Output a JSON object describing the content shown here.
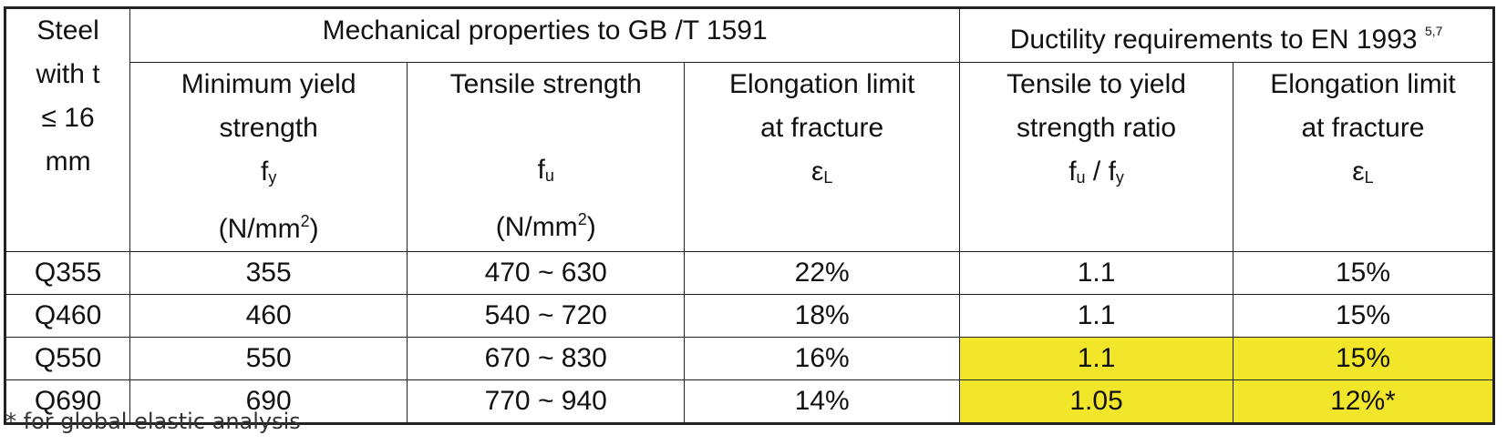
{
  "table": {
    "header_steel": [
      "Steel",
      "with t",
      "≤ 16",
      "mm"
    ],
    "group_gb": "Mechanical properties to GB /T 1591",
    "group_en": "Ductility requirements to EN 1993",
    "group_en_refs": "5,7",
    "columns": [
      {
        "lines": [
          "Minimum yield",
          "strength"
        ],
        "symbol_base": "f",
        "symbol_sub": "y",
        "unit_base": "(N/mm",
        "unit_sup": "2",
        "unit_close": ")"
      },
      {
        "lines": [
          "Tensile strength"
        ],
        "symbol_base": "f",
        "symbol_sub": "u",
        "unit_base": "(N/mm",
        "unit_sup": "2",
        "unit_close": ")"
      },
      {
        "lines": [
          "Elongation limit",
          "at fracture"
        ],
        "symbol_base": "ε",
        "symbol_sub": "L"
      },
      {
        "lines": [
          "Tensile to yield",
          "strength ratio"
        ],
        "symbol_a_base": "f",
        "symbol_a_sub": "u",
        "symbol_sep": " / ",
        "symbol_b_base": "f",
        "symbol_b_sub": "y"
      },
      {
        "lines": [
          "Elongation limit",
          "at fracture"
        ],
        "symbol_base": "ε",
        "symbol_sub": "L"
      }
    ],
    "rows": [
      {
        "steel": "Q355",
        "fy": "355",
        "fu": "470 ~ 630",
        "elong": "22%",
        "ratio": "1.1",
        "elong_en": "15%",
        "highlight": false
      },
      {
        "steel": "Q460",
        "fy": "460",
        "fu": "540 ~ 720",
        "elong": "18%",
        "ratio": "1.1",
        "elong_en": "15%",
        "highlight": false
      },
      {
        "steel": "Q550",
        "fy": "550",
        "fu": "670 ~ 830",
        "elong": "16%",
        "ratio": "1.1",
        "elong_en": "15%",
        "highlight": true
      },
      {
        "steel": "Q690",
        "fy": "690",
        "fu": "770 ~ 940",
        "elong": "14%",
        "ratio": "1.05",
        "elong_en": "12%*",
        "highlight": true
      }
    ],
    "highlight_color": "#f2e62a"
  },
  "footnote": "* for global elastic analysis"
}
